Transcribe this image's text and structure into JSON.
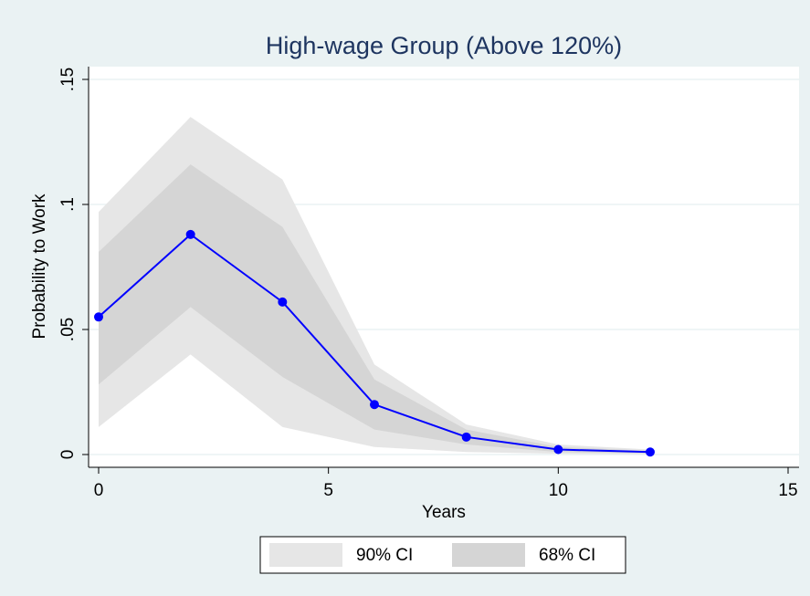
{
  "chart_data": {
    "type": "line",
    "title": "High-wage Group (Above 120%)",
    "x_label": "Years",
    "y_label": "Probability to Work",
    "x": [
      0,
      2,
      4,
      6,
      8,
      10,
      12
    ],
    "values": [
      0.055,
      0.088,
      0.061,
      0.02,
      0.007,
      0.002,
      0.001
    ],
    "color": "#0000ff",
    "bands": [
      {
        "name": "90% CI",
        "color": "#e6e6e6",
        "lower": [
          0.011,
          0.04,
          0.011,
          0.003,
          0.001,
          0.0003,
          0.0001
        ],
        "upper": [
          0.097,
          0.135,
          0.11,
          0.036,
          0.012,
          0.004,
          0.002
        ]
      },
      {
        "name": "68% CI",
        "color": "#d5d5d5",
        "lower": [
          0.028,
          0.059,
          0.031,
          0.01,
          0.004,
          0.001,
          0.0005
        ],
        "upper": [
          0.081,
          0.116,
          0.091,
          0.03,
          0.01,
          0.003,
          0.0015
        ]
      }
    ],
    "xlim": [
      0,
      15
    ],
    "xticks": [
      0,
      5,
      10,
      15
    ],
    "ylim": [
      0,
      0.15
    ],
    "yticks": [
      0,
      {
        "value": 0.05,
        "label": ".05"
      },
      {
        "value": 0.1,
        "label": ".1"
      },
      {
        "value": 0.15,
        "label": ".15"
      }
    ],
    "grid": true
  }
}
